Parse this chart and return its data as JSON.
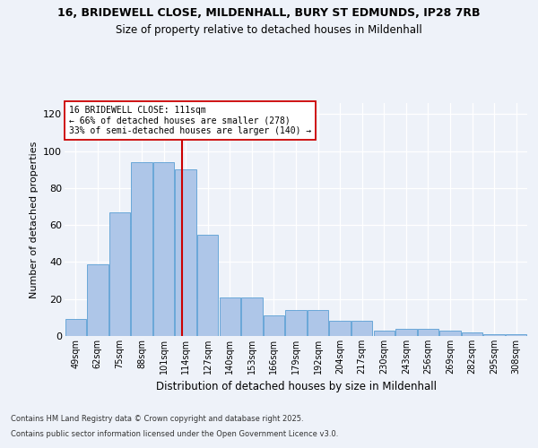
{
  "title1": "16, BRIDEWELL CLOSE, MILDENHALL, BURY ST EDMUNDS, IP28 7RB",
  "title2": "Size of property relative to detached houses in Mildenhall",
  "xlabel": "Distribution of detached houses by size in Mildenhall",
  "ylabel": "Number of detached properties",
  "categories": [
    "49sqm",
    "62sqm",
    "75sqm",
    "88sqm",
    "101sqm",
    "114sqm",
    "127sqm",
    "140sqm",
    "153sqm",
    "166sqm",
    "179sqm",
    "192sqm",
    "204sqm",
    "217sqm",
    "230sqm",
    "243sqm",
    "256sqm",
    "269sqm",
    "282sqm",
    "295sqm",
    "308sqm"
  ],
  "values": [
    9,
    39,
    67,
    94,
    94,
    90,
    55,
    21,
    21,
    11,
    14,
    14,
    8,
    8,
    3,
    4,
    4,
    3,
    2,
    1,
    1
  ],
  "bar_color": "#aec6e8",
  "bar_edge_color": "#5a9fd4",
  "annotation_title": "16 BRIDEWELL CLOSE: 111sqm",
  "annotation_line1": "← 66% of detached houses are smaller (278)",
  "annotation_line2": "33% of semi-detached houses are larger (140) →",
  "annotation_box_color": "#ffffff",
  "annotation_box_edge": "#cc0000",
  "vline_color": "#cc0000",
  "background_color": "#eef2f9",
  "grid_color": "#ffffff",
  "ylim": [
    0,
    126
  ],
  "yticks": [
    0,
    20,
    40,
    60,
    80,
    100,
    120
  ],
  "footer1": "Contains HM Land Registry data © Crown copyright and database right 2025.",
  "footer2": "Contains public sector information licensed under the Open Government Licence v3.0."
}
